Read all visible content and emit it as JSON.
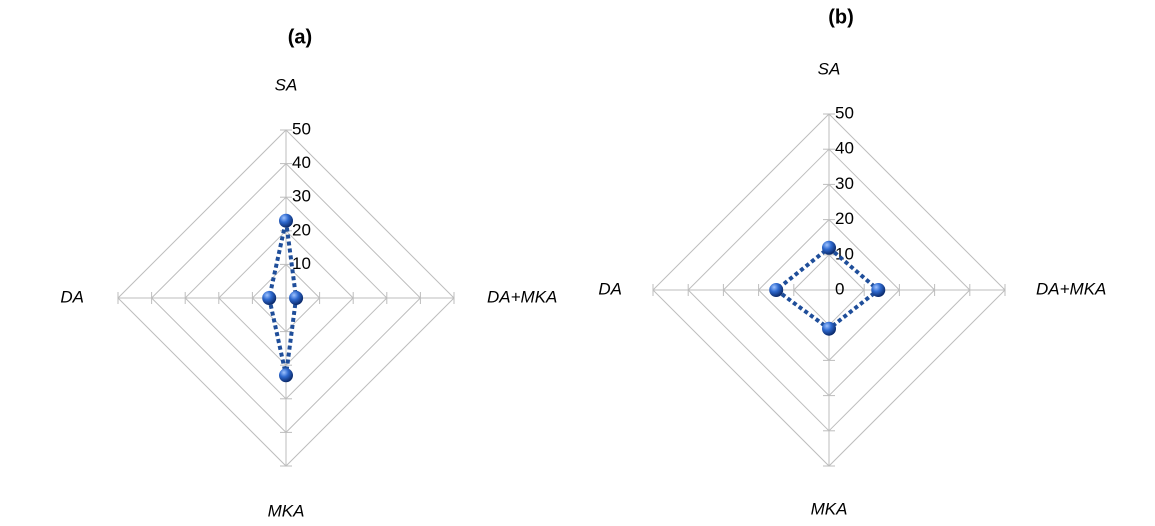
{
  "chart_data": [
    {
      "type": "radar",
      "title": "(a)",
      "categories": [
        "SA",
        "DA+MKA",
        "MKA",
        "DA"
      ],
      "values": [
        23,
        3,
        23,
        5
      ],
      "color": "#1f4e9a",
      "rlim": [
        0,
        50
      ],
      "rticks": [
        0,
        10,
        20,
        30,
        40,
        50
      ],
      "grid": true
    },
    {
      "type": "radar",
      "title": "(b)",
      "categories": [
        "SA",
        "DA+MKA",
        "MKA",
        "DA"
      ],
      "values": [
        12,
        14,
        11,
        15
      ],
      "color": "#1f4e9a",
      "rlim": [
        0,
        50
      ],
      "rticks": [
        0,
        10,
        20,
        30,
        40,
        50
      ],
      "grid": true
    }
  ]
}
